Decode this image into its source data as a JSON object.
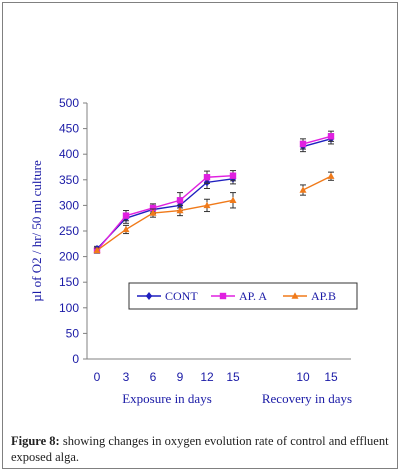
{
  "chart_data": {
    "type": "line",
    "ylabel": "µl of O2 / hr/ 50 ml culture",
    "ylim": [
      0,
      500
    ],
    "yticks": [
      0,
      50,
      100,
      150,
      200,
      250,
      300,
      350,
      400,
      450,
      500
    ],
    "categories": [
      "0",
      "3",
      "6",
      "9",
      "12",
      "15",
      "10",
      "15"
    ],
    "group_labels": [
      "Exposure in days",
      "Recovery in days"
    ],
    "grid": false,
    "legend_position": "lower-center",
    "series": [
      {
        "name": "CONT",
        "color": "#1f1fbf",
        "marker": "diamond",
        "segments": [
          {
            "values": [
              215,
              275,
              292,
              300,
              345,
              352
            ],
            "errors": [
              5,
              10,
              8,
              10,
              12,
              10
            ]
          },
          {
            "values": [
              415,
              430
            ],
            "errors": [
              10,
              10
            ]
          }
        ]
      },
      {
        "name": "AP. A",
        "color": "#e020e0",
        "marker": "square",
        "segments": [
          {
            "values": [
              212,
              280,
              295,
              310,
              355,
              358
            ],
            "errors": [
              5,
              10,
              8,
              15,
              12,
              10
            ]
          },
          {
            "values": [
              420,
              435
            ],
            "errors": [
              10,
              10
            ]
          }
        ]
      },
      {
        "name": "AP.B",
        "color": "#f07a1a",
        "marker": "triangle",
        "segments": [
          {
            "values": [
              212,
              253,
              285,
              290,
              300,
              310
            ],
            "errors": [
              5,
              8,
              8,
              10,
              12,
              15
            ]
          },
          {
            "values": [
              330,
              357
            ],
            "errors": [
              10,
              8
            ]
          }
        ]
      }
    ]
  },
  "caption": {
    "label": "Figure 8:",
    "text": " showing changes in oxygen evolution rate of control and effluent exposed alga."
  }
}
